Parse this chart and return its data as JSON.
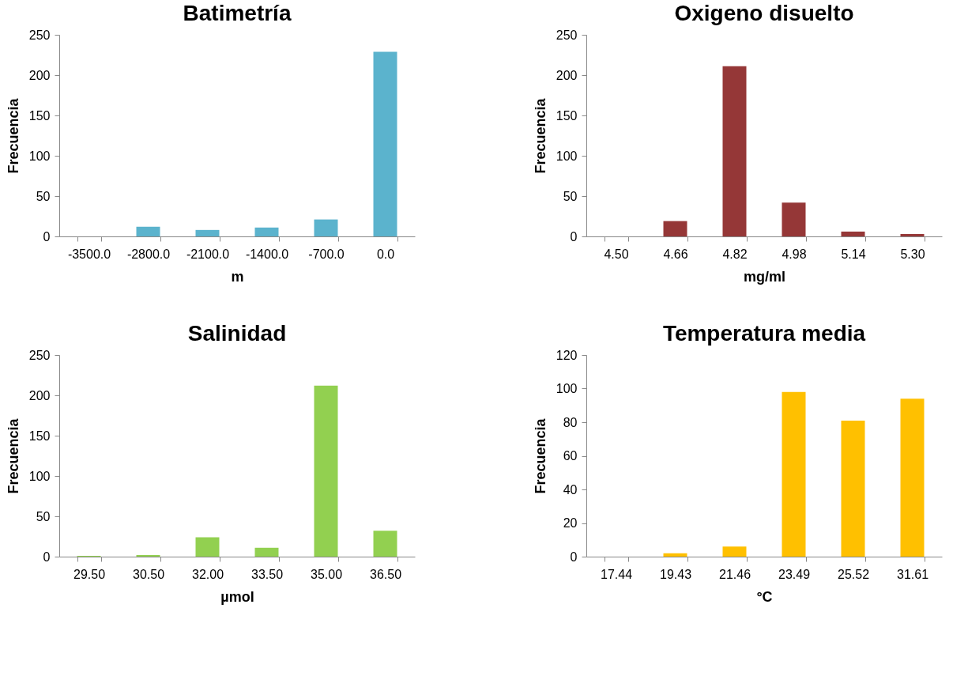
{
  "chart_data": [
    {
      "type": "bar",
      "title": "Batimetría",
      "xlabel": "m",
      "ylabel": "Frecuencia",
      "categories": [
        "-3500.0",
        "-2800.0",
        "-2100.0",
        "-1400.0",
        "-700.0",
        "0.0"
      ],
      "values": [
        0,
        12,
        8,
        11,
        21,
        229
      ],
      "color": "#5bb3cd",
      "ylim": [
        0,
        250
      ],
      "yticks": [
        0,
        50,
        100,
        150,
        200,
        250
      ]
    },
    {
      "type": "bar",
      "title": "Oxigeno disuelto",
      "xlabel": "mg/ml",
      "ylabel": "Frecuencia",
      "categories": [
        "4.50",
        "4.66",
        "4.82",
        "4.98",
        "5.14",
        "5.30"
      ],
      "values": [
        0,
        19,
        211,
        42,
        6,
        3
      ],
      "color": "#953737",
      "ylim": [
        0,
        250
      ],
      "yticks": [
        0,
        50,
        100,
        150,
        200,
        250
      ]
    },
    {
      "type": "bar",
      "title": "Salinidad",
      "xlabel": "µmol",
      "ylabel": "Frecuencia",
      "categories": [
        "29.50",
        "30.50",
        "32.00",
        "33.50",
        "35.00",
        "36.50"
      ],
      "values": [
        1,
        2,
        24,
        11,
        212,
        32
      ],
      "color": "#92d050",
      "ylim": [
        0,
        250
      ],
      "yticks": [
        0,
        50,
        100,
        150,
        200,
        250
      ]
    },
    {
      "type": "bar",
      "title": "Temperatura media",
      "xlabel": "°C",
      "ylabel": "Frecuencia",
      "categories": [
        "17.44",
        "19.43",
        "21.46",
        "23.49",
        "25.52",
        "31.61"
      ],
      "values": [
        0,
        2,
        6,
        98,
        81,
        94
      ],
      "color": "#ffc000",
      "ylim": [
        0,
        120
      ],
      "yticks": [
        0,
        20,
        40,
        60,
        80,
        100,
        120
      ]
    }
  ]
}
